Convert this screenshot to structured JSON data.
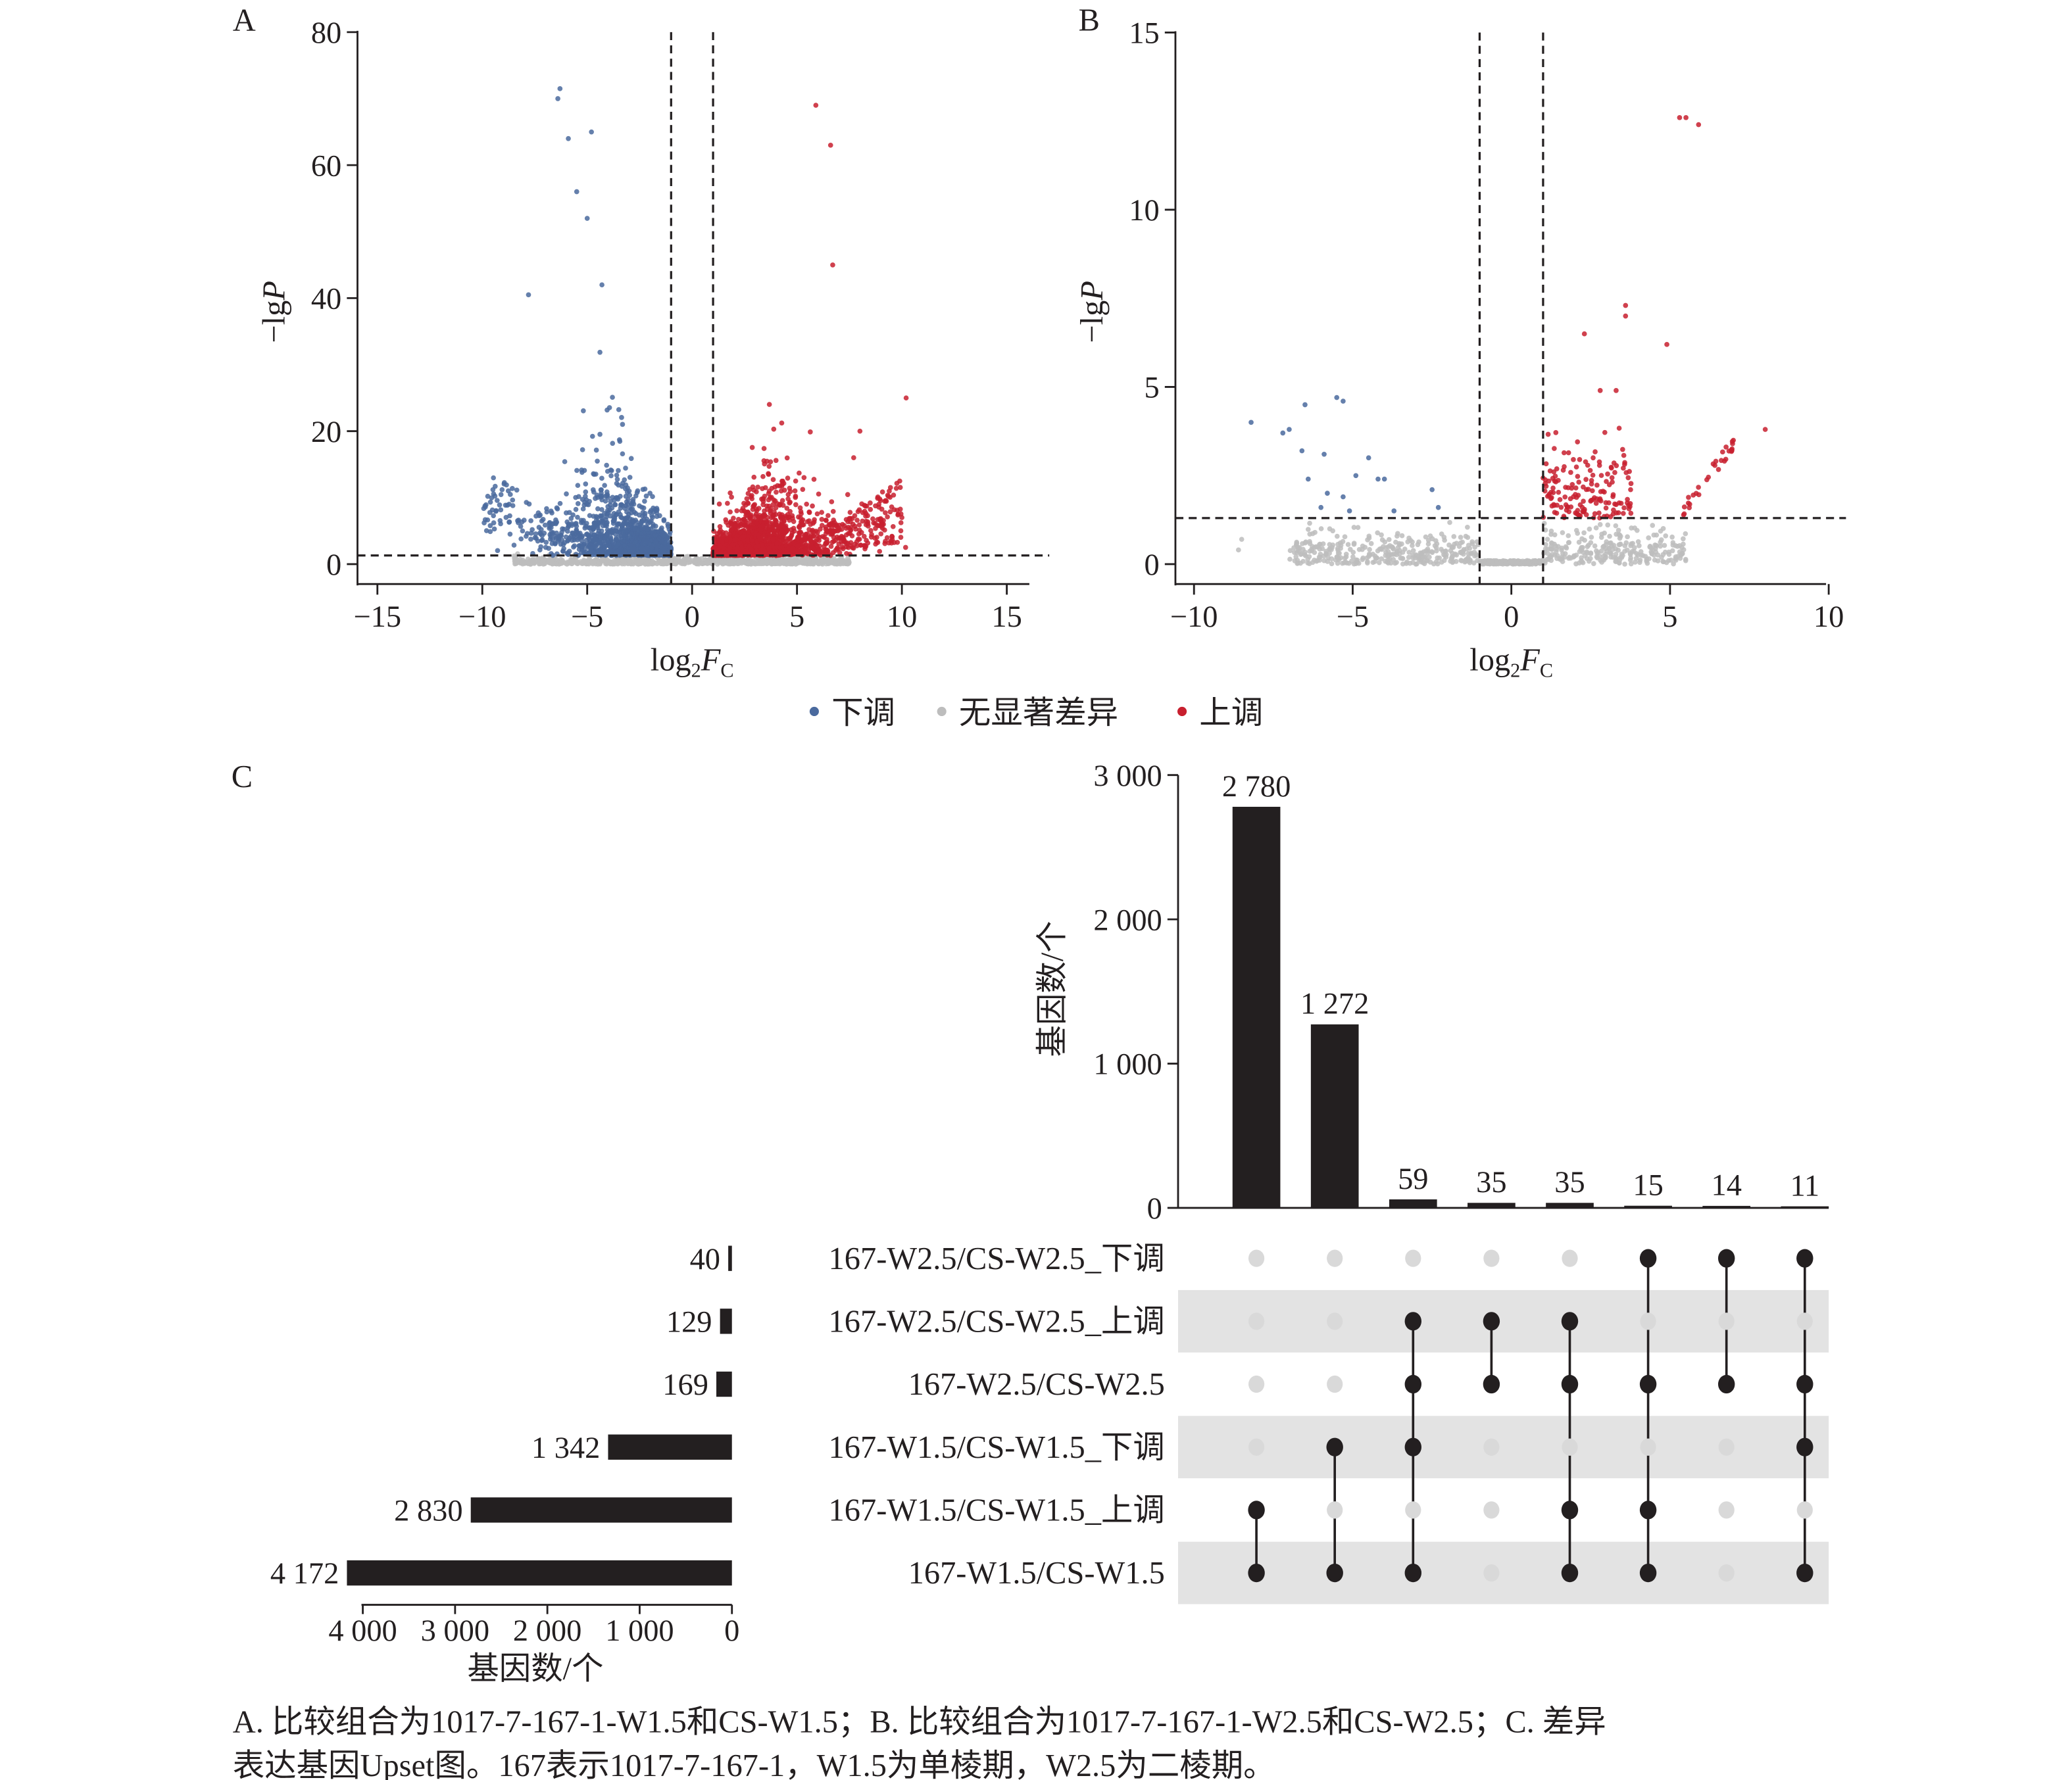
{
  "caption": {
    "line1": "A. 比较组合为1017-7-167-1-W1.5和CS-W1.5；B. 比较组合为1017-7-167-1-W2.5和CS-W2.5；C. 差异",
    "line2": "表达基因Upset图。167表示1017-7-167-1，W1.5为单棱期，W2.5为二棱期。"
  },
  "legend": {
    "items": [
      {
        "label": "下调",
        "color": "#4a6a9e"
      },
      {
        "label": "无显著差异",
        "color": "#bdbdbd"
      },
      {
        "label": "上调",
        "color": "#c8202f"
      }
    ]
  },
  "chart_data": [
    {
      "panel": "A",
      "type": "scatter",
      "xlabel": "log2FC",
      "ylabel": "−lgP",
      "xlim": [
        -16,
        16
      ],
      "ylim": [
        0,
        80
      ],
      "xticks": [
        "−15",
        "−10",
        "−5",
        "0",
        "5",
        "10",
        "15"
      ],
      "yticks": [
        "0",
        "20",
        "40",
        "60",
        "80"
      ],
      "thresholds": {
        "log2fc": [
          -1,
          1
        ],
        "neg_log10_p": 1.3
      },
      "series": [
        {
          "name": "下调",
          "color": "#4a6a9e",
          "x_range": [
            -10.2,
            -1
          ],
          "y_max": 71.5
        },
        {
          "name": "无显著差异",
          "color": "#bdbdbd",
          "x_range": [
            -9,
            7
          ],
          "y_max": 1.3
        },
        {
          "name": "上调",
          "color": "#c8202f",
          "x_range": [
            1,
            10.5
          ],
          "y_max": 69
        }
      ]
    },
    {
      "panel": "B",
      "type": "scatter",
      "xlabel": "log2FC",
      "ylabel": "−lgP",
      "xlim": [
        -10.5,
        10
      ],
      "ylim": [
        0,
        15
      ],
      "xticks": [
        "−10",
        "−5",
        "0",
        "5",
        "10"
      ],
      "yticks": [
        "0",
        "5",
        "10",
        "15"
      ],
      "thresholds": {
        "log2fc": [
          -1,
          1
        ],
        "neg_log10_p": 1.3
      },
      "series": [
        {
          "name": "下调",
          "color": "#4a6a9e",
          "x_range": [
            -8.2,
            -2
          ],
          "y_max": 4.7
        },
        {
          "name": "无显著差异",
          "color": "#bdbdbd",
          "x_range": [
            -8.5,
            6
          ],
          "y_max": 1.3
        },
        {
          "name": "上调",
          "color": "#c8202f",
          "x_range": [
            1,
            8
          ],
          "y_max": 12.6
        }
      ]
    },
    {
      "panel": "C",
      "type": "bar",
      "subtype": "upset",
      "ylabel": "基因数/个",
      "ylim": [
        0,
        3000
      ],
      "yticks": [
        "0",
        "1 000",
        "2 000",
        "3 000"
      ],
      "intersections": [
        {
          "value": 2780,
          "label": "2 780",
          "sets": [
            4,
            5
          ]
        },
        {
          "value": 1272,
          "label": "1 272",
          "sets": [
            3,
            5
          ]
        },
        {
          "value": 59,
          "label": "59",
          "sets": [
            1,
            2,
            3,
            5
          ]
        },
        {
          "value": 35,
          "label": "35",
          "sets": [
            1,
            2
          ]
        },
        {
          "value": 35,
          "label": "35",
          "sets": [
            1,
            2,
            4,
            5
          ]
        },
        {
          "value": 15,
          "label": "15",
          "sets": [
            0,
            2,
            4,
            5
          ]
        },
        {
          "value": 14,
          "label": "14",
          "sets": [
            0,
            2
          ]
        },
        {
          "value": 11,
          "label": "11",
          "sets": [
            0,
            2,
            3,
            5
          ]
        }
      ],
      "sets": [
        {
          "name": "167-W2.5/CS-W2.5_下调",
          "size": 40,
          "label": "40"
        },
        {
          "name": "167-W2.5/CS-W2.5_上调",
          "size": 129,
          "label": "129"
        },
        {
          "name": "167-W2.5/CS-W2.5",
          "size": 169,
          "label": "169"
        },
        {
          "name": "167-W1.5/CS-W1.5_下调",
          "size": 1342,
          "label": "1 342"
        },
        {
          "name": "167-W1.5/CS-W1.5_上调",
          "size": 2830,
          "label": "2 830"
        },
        {
          "name": "167-W1.5/CS-W1.5",
          "size": 4172,
          "label": "4 172"
        }
      ],
      "set_size_axis": {
        "label": "基因数/个",
        "xlim": [
          0,
          4000
        ],
        "ticks": [
          "4 000",
          "3 000",
          "2 000",
          "1 000",
          "0"
        ]
      },
      "colors": {
        "bar": "#231f20",
        "dot_on": "#231f20",
        "dot_off": "#d9d9d9",
        "band": "#e3e3e3"
      }
    }
  ],
  "panel_labels": [
    "A",
    "B",
    "C"
  ]
}
